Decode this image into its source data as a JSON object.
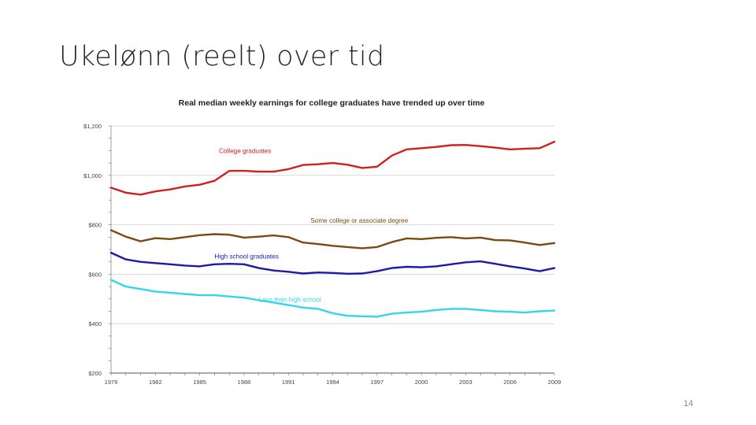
{
  "slide": {
    "title": "Ukelønn (reelt) over tid",
    "page_number": "14"
  },
  "colors": {
    "college": "#d01f1f",
    "some_college": "#7a4a12",
    "high_school": "#1a1aa8",
    "less_than_hs": "#33d4f0",
    "grid": "#d0d0d0"
  },
  "chart_data": {
    "type": "line",
    "title": "Real median weekly earnings for college graduates have trended up over time",
    "xlabel": "",
    "ylabel": "",
    "xlim": [
      1979,
      2009
    ],
    "ylim": [
      200,
      1200
    ],
    "x_ticks": [
      1979,
      1982,
      1985,
      1988,
      1991,
      1994,
      1997,
      2000,
      2003,
      2006,
      2009
    ],
    "y_ticks": [
      200,
      400,
      600,
      800,
      1000,
      1200
    ],
    "y_tick_labels": [
      "$200",
      "$400",
      "$600",
      "$800",
      "$1,000",
      "$1,200"
    ],
    "x": [
      1979,
      1980,
      1981,
      1982,
      1983,
      1984,
      1985,
      1986,
      1987,
      1988,
      1989,
      1990,
      1991,
      1992,
      1993,
      1994,
      1995,
      1996,
      1997,
      1998,
      1999,
      2000,
      2001,
      2002,
      2003,
      2004,
      2005,
      2006,
      2007,
      2008,
      2009
    ],
    "series": [
      {
        "name": "College graduates",
        "color_key": "college",
        "values": [
          950,
          930,
          922,
          935,
          943,
          955,
          962,
          978,
          1018,
          1018,
          1015,
          1015,
          1025,
          1042,
          1045,
          1050,
          1043,
          1030,
          1035,
          1080,
          1105,
          1110,
          1115,
          1122,
          1123,
          1118,
          1112,
          1105,
          1108,
          1110,
          1136
        ]
      },
      {
        "name": "Some college or associate degree",
        "color_key": "some_college",
        "values": [
          778,
          752,
          733,
          746,
          742,
          750,
          758,
          762,
          760,
          748,
          752,
          757,
          750,
          728,
          722,
          715,
          710,
          705,
          710,
          730,
          745,
          742,
          747,
          750,
          745,
          748,
          738,
          737,
          728,
          718,
          726
        ]
      },
      {
        "name": "High school graduates",
        "color_key": "high_school",
        "values": [
          687,
          660,
          650,
          645,
          640,
          635,
          632,
          640,
          642,
          640,
          625,
          615,
          610,
          603,
          607,
          605,
          602,
          603,
          612,
          625,
          630,
          628,
          632,
          640,
          648,
          652,
          642,
          632,
          623,
          612,
          625
        ]
      },
      {
        "name": "Less than high school",
        "color_key": "less_than_hs",
        "values": [
          577,
          550,
          540,
          530,
          525,
          520,
          515,
          515,
          510,
          505,
          495,
          485,
          475,
          465,
          460,
          442,
          432,
          430,
          428,
          440,
          445,
          448,
          455,
          460,
          460,
          455,
          450,
          448,
          445,
          450,
          453
        ]
      }
    ],
    "annotations": [
      {
        "text": "College graduates",
        "series": 0,
        "x": 1986.3,
        "y": 1090
      },
      {
        "text": "Some college or associate degree",
        "series": 1,
        "x": 1992.5,
        "y": 808
      },
      {
        "text": "High school graduates",
        "series": 2,
        "x": 1986.0,
        "y": 663
      },
      {
        "text": "Less than high school",
        "series": 3,
        "x": 1989.0,
        "y": 488
      }
    ]
  }
}
